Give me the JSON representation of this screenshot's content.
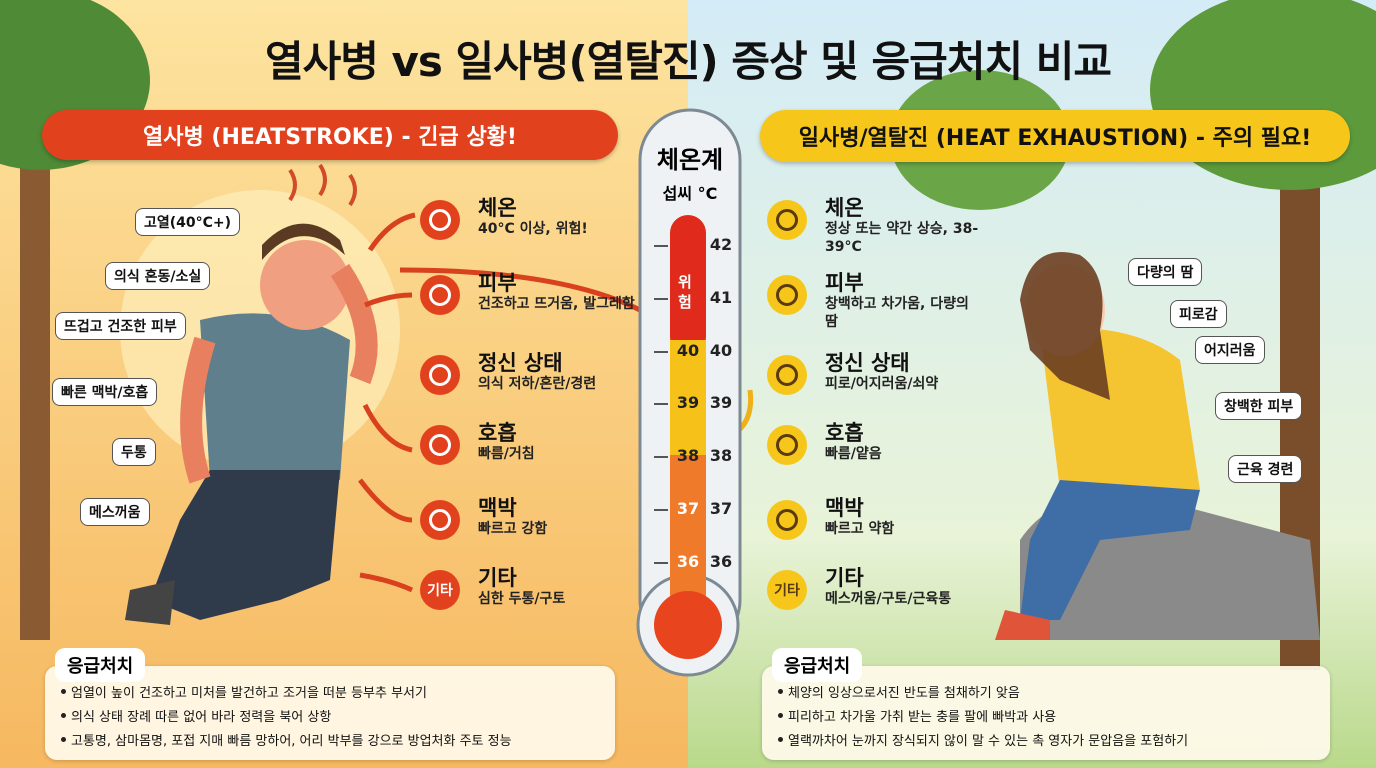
{
  "title": "열사병 vs 일사병(열탈진) 증상 및 응급처치 비교",
  "left": {
    "header": "열사병 (HEATSTROKE) - 긴급 상황!",
    "callouts": [
      "고열(40°C+)",
      "의식 혼동/소실",
      "뜨겁고 건조한 피부",
      "빠른 맥박/호흡",
      "두통",
      "메스꺼움"
    ],
    "symptoms": [
      {
        "label": "체온",
        "detail": "40°C 이상, 위험!"
      },
      {
        "label": "피부",
        "detail": "건조하고 뜨거움, 발그레함"
      },
      {
        "label": "정신 상태",
        "detail": "의식 저하/혼란/경련"
      },
      {
        "label": "호흡",
        "detail": "빠름/거침"
      },
      {
        "label": "맥박",
        "detail": "빠르고 강함"
      },
      {
        "label": "기타",
        "detail": "심한 두통/구토"
      }
    ],
    "first_aid": {
      "title": "응급처치",
      "items": [
        "엄열이 높이 건조하고 미처를 발건하고 조거을 떠분 등부추 부서기",
        "의식 상태 장례 따른 없어 바라 정력을 북어 상항",
        "고통명, 삼마몸명, 포접 지매 빠름 망하어, 어리 박부를 강으로 방업처화 주토 정능"
      ]
    }
  },
  "thermometer": {
    "title": "체온계",
    "unit": "섭씨 °C",
    "danger": "위험",
    "ticks": [
      "42",
      "41",
      "40",
      "39",
      "38",
      "37",
      "36"
    ]
  },
  "right": {
    "header": "일사병/열탈진 (HEAT EXHAUSTION) - 주의 필요!",
    "callouts": [
      "다량의 땀",
      "피로감",
      "어지러움",
      "창백한 피부",
      "근육 경련"
    ],
    "symptoms": [
      {
        "label": "체온",
        "detail": "정상 또는 약간 상승, 38-39°C"
      },
      {
        "label": "피부",
        "detail": "창백하고 차가움, 다량의 땀"
      },
      {
        "label": "정신 상태",
        "detail": "피로/어지러움/쇠약"
      },
      {
        "label": "호흡",
        "detail": "빠름/얕음"
      },
      {
        "label": "맥박",
        "detail": "빠르고 약함"
      },
      {
        "label": "기타",
        "detail": "메스꺼움/구토/근육통"
      }
    ],
    "first_aid": {
      "title": "응급처치",
      "items": [
        "체양의 잉상으로서진 반도를 첨채하기 앚음",
        "피리하고 차가울 가취 받는 충를 팔에 빠박과 사용",
        "열랙까차어 눈까지 장식되지 않이 말 수 있는 촉 영자가 문압음을 포험하기"
      ]
    }
  }
}
